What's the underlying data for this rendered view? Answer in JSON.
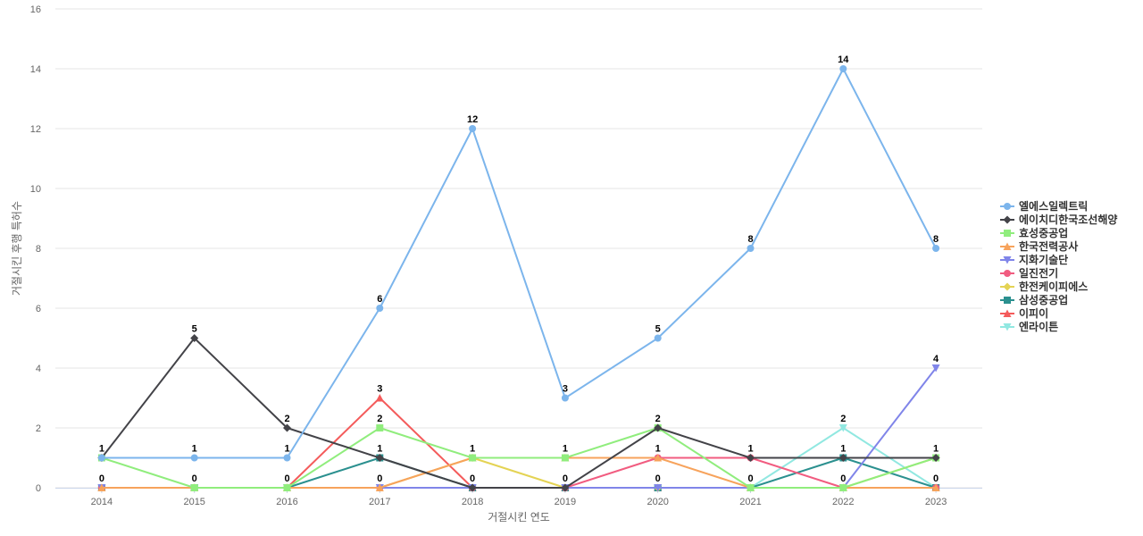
{
  "chart_data": {
    "type": "line",
    "title": "",
    "xlabel": "거절시킨 연도",
    "ylabel": "거절시킨 후행 특허수",
    "categories": [
      "2014",
      "2015",
      "2016",
      "2017",
      "2018",
      "2019",
      "2020",
      "2021",
      "2022",
      "2023"
    ],
    "ylim": [
      0,
      16
    ],
    "yticks": [
      0,
      2,
      4,
      6,
      8,
      10,
      12,
      14,
      16
    ],
    "grid": true,
    "legend_position": "right",
    "series": [
      {
        "name": "엘에스일렉트릭",
        "color": "#7cb5ec",
        "marker": "circle",
        "values": [
          1,
          1,
          1,
          6,
          12,
          3,
          5,
          8,
          14,
          8
        ]
      },
      {
        "name": "에이치디한국조선해양",
        "color": "#434348",
        "marker": "diamond",
        "values": [
          1,
          5,
          2,
          1,
          0,
          0,
          2,
          1,
          1,
          1
        ]
      },
      {
        "name": "효성중공업",
        "color": "#90ed7d",
        "marker": "square",
        "values": [
          1,
          0,
          0,
          2,
          1,
          1,
          2,
          0,
          0,
          1
        ]
      },
      {
        "name": "한국전력공사",
        "color": "#f7a35c",
        "marker": "triangle",
        "values": [
          0,
          0,
          0,
          0,
          1,
          1,
          1,
          0,
          0,
          0
        ]
      },
      {
        "name": "지화기술단",
        "color": "#8085e9",
        "marker": "triangle-down",
        "values": [
          0,
          0,
          0,
          0,
          0,
          0,
          0,
          0,
          0,
          4
        ]
      },
      {
        "name": "일진전기",
        "color": "#f15c80",
        "marker": "circle",
        "values": [
          0,
          0,
          0,
          0,
          0,
          0,
          1,
          1,
          0,
          0
        ]
      },
      {
        "name": "한전케이피에스",
        "color": "#e4d354",
        "marker": "diamond",
        "values": [
          0,
          0,
          0,
          0,
          1,
          0,
          0,
          0,
          0,
          1
        ]
      },
      {
        "name": "삼성중공업",
        "color": "#2b908f",
        "marker": "square",
        "values": [
          0,
          0,
          0,
          1,
          0,
          0,
          0,
          0,
          1,
          0
        ]
      },
      {
        "name": "이피이",
        "color": "#f45b5b",
        "marker": "triangle",
        "values": [
          0,
          0,
          0,
          3,
          0,
          0,
          0,
          0,
          0,
          0
        ]
      },
      {
        "name": "엔라이튼",
        "color": "#91e8e1",
        "marker": "triangle-down",
        "values": [
          0,
          0,
          0,
          0,
          0,
          0,
          0,
          0,
          2,
          0
        ]
      }
    ],
    "data_labels": [
      {
        "category": "2014",
        "text": "1",
        "value": 1
      },
      {
        "category": "2014",
        "text": "0",
        "value": 0
      },
      {
        "category": "2015",
        "text": "5",
        "value": 5
      },
      {
        "category": "2015",
        "text": "1",
        "value": 1
      },
      {
        "category": "2015",
        "text": "0",
        "value": 0
      },
      {
        "category": "2016",
        "text": "2",
        "value": 2
      },
      {
        "category": "2016",
        "text": "1",
        "value": 1
      },
      {
        "category": "2016",
        "text": "0",
        "value": 0
      },
      {
        "category": "2017",
        "text": "6",
        "value": 6
      },
      {
        "category": "2017",
        "text": "3",
        "value": 3
      },
      {
        "category": "2017",
        "text": "2",
        "value": 2
      },
      {
        "category": "2017",
        "text": "1",
        "value": 1
      },
      {
        "category": "2017",
        "text": "0",
        "value": 0
      },
      {
        "category": "2018",
        "text": "12",
        "value": 12
      },
      {
        "category": "2018",
        "text": "1",
        "value": 1
      },
      {
        "category": "2018",
        "text": "0",
        "value": 0
      },
      {
        "category": "2019",
        "text": "3",
        "value": 3
      },
      {
        "category": "2019",
        "text": "1",
        "value": 1
      },
      {
        "category": "2019",
        "text": "0",
        "value": 0
      },
      {
        "category": "2020",
        "text": "5",
        "value": 5
      },
      {
        "category": "2020",
        "text": "2",
        "value": 2
      },
      {
        "category": "2020",
        "text": "1",
        "value": 1
      },
      {
        "category": "2020",
        "text": "0",
        "value": 0
      },
      {
        "category": "2021",
        "text": "8",
        "value": 8
      },
      {
        "category": "2021",
        "text": "1",
        "value": 1
      },
      {
        "category": "2021",
        "text": "0",
        "value": 0
      },
      {
        "category": "2022",
        "text": "14",
        "value": 14
      },
      {
        "category": "2022",
        "text": "2",
        "value": 2
      },
      {
        "category": "2022",
        "text": "1",
        "value": 1
      },
      {
        "category": "2022",
        "text": "0",
        "value": 0
      },
      {
        "category": "2023",
        "text": "8",
        "value": 8
      },
      {
        "category": "2023",
        "text": "4",
        "value": 4
      },
      {
        "category": "2023",
        "text": "1",
        "value": 1
      },
      {
        "category": "2023",
        "text": "0",
        "value": 0
      }
    ]
  }
}
